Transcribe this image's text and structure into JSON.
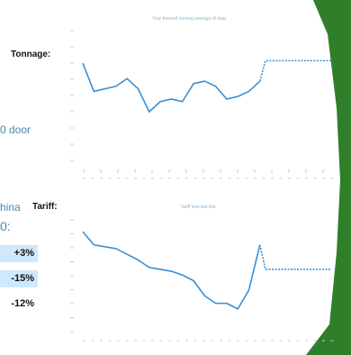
{
  "labels": {
    "tonnage": "Tonnage:",
    "tariff": "Tariff:"
  },
  "fragments": {
    "door": "0 door",
    "china": "hina",
    "zero": "0:"
  },
  "percent_rows": [
    {
      "text": "+3%",
      "highlighted": true
    },
    {
      "text": "-15%",
      "highlighted": true
    },
    {
      "text": "-12%",
      "highlighted": false
    }
  ],
  "colors": {
    "line": "#3a8fd6",
    "highlight": "#cfe8fb",
    "background_green": "#2f7f2a",
    "tick": "#b7cfe6"
  },
  "chart_data": [
    {
      "type": "line",
      "title": "Year forward moving average of data",
      "series": [
        {
          "values": [
            58,
            47,
            48,
            49,
            52,
            48,
            39,
            43,
            44,
            43,
            50,
            51,
            49,
            44,
            45,
            47,
            51
          ],
          "style": "solid"
        },
        {
          "values": [
            51,
            59,
            59,
            59,
            59,
            59,
            59,
            59,
            59,
            59,
            59,
            59,
            59,
            59
          ],
          "style": "dashed"
        }
      ]
    },
    {
      "type": "line",
      "title": "Tariff forecast line",
      "series": [
        {
          "values": [
            68,
            61,
            60,
            59,
            56,
            53,
            49,
            48,
            47,
            45,
            42,
            34,
            30,
            30,
            27,
            37,
            61
          ],
          "style": "solid"
        },
        {
          "values": [
            61,
            48,
            48,
            48,
            48,
            48,
            48,
            48,
            48,
            48,
            48,
            48,
            48,
            48
          ],
          "style": "dashed"
        }
      ]
    }
  ]
}
